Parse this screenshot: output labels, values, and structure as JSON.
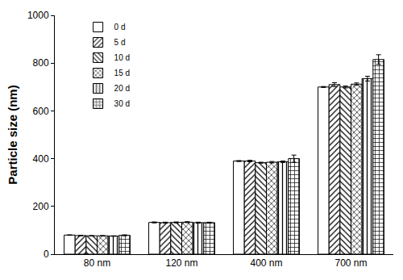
{
  "chart_data": {
    "type": "bar",
    "y_label": "Particle size (nm)",
    "categories": [
      "80 nm",
      "120 nm",
      "400 nm",
      "700 nm"
    ],
    "series": [
      {
        "name": "0 d",
        "color": "#000000",
        "marker": "blank",
        "values": [
          80,
          133,
          390,
          700
        ],
        "errors": [
          1,
          2,
          2,
          2
        ]
      },
      {
        "name": "5 d",
        "color": "#000000",
        "marker": "slash",
        "values": [
          78,
          132,
          390,
          710
        ],
        "errors": [
          1,
          2,
          3,
          8
        ]
      },
      {
        "name": "10 d",
        "color": "#000000",
        "marker": "backslash",
        "values": [
          77,
          133,
          383,
          700
        ],
        "errors": [
          1,
          2,
          2,
          4
        ]
      },
      {
        "name": "15 d",
        "color": "#000000",
        "marker": "cross",
        "values": [
          77,
          134,
          385,
          712
        ],
        "errors": [
          1,
          2,
          3,
          5
        ]
      },
      {
        "name": "20 d",
        "color": "#000000",
        "marker": "vertical",
        "values": [
          76,
          132,
          387,
          735
        ],
        "errors": [
          1,
          2,
          3,
          10
        ]
      },
      {
        "name": "30 d",
        "color": "#000000",
        "marker": "grid",
        "values": [
          79,
          132,
          400,
          815
        ],
        "errors": [
          2,
          2,
          15,
          20
        ]
      }
    ],
    "ylim": [
      0,
      1000
    ],
    "yticks": [
      0,
      200,
      400,
      600,
      800,
      1000
    ],
    "grid": false,
    "legend": "upper left"
  }
}
